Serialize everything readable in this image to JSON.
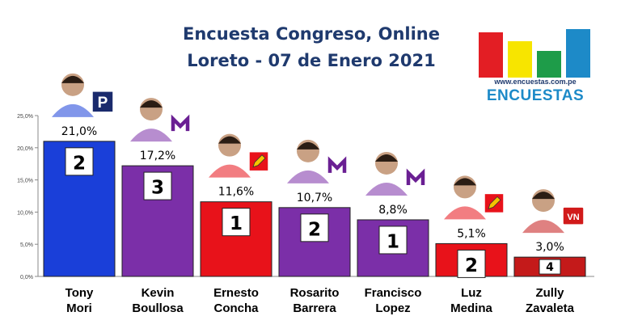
{
  "title_lines": [
    "Encuesta Congreso, Online",
    "Loreto - 07 de Enero 2021"
  ],
  "logo": {
    "url_text": "www.encuestas.com.pe",
    "brand_text": "ENCUESTAS",
    "bar_colors": [
      "#e31e24",
      "#f7e500",
      "#1e9c49",
      "#1d8ac8"
    ],
    "bar_levels": [
      0.82,
      0.66,
      0.48,
      0.88
    ]
  },
  "chart_data": {
    "type": "bar",
    "title": "Encuesta Congreso, Online — Loreto - 07 de Enero 2021",
    "categories": [
      "Tony Mori",
      "Kevin Boullosa",
      "Ernesto Concha",
      "Rosarito Barrera",
      "Francisco Lopez",
      "Luz Medina",
      "Zully Zavaleta"
    ],
    "category_lines": [
      [
        "Tony",
        "Mori"
      ],
      [
        "Kevin",
        "Boullosa"
      ],
      [
        "Ernesto",
        "Concha"
      ],
      [
        "Rosarito",
        "Barrera"
      ],
      [
        "Francisco",
        "Lopez"
      ],
      [
        "Luz",
        "Medina"
      ],
      [
        "Zully",
        "Zavaleta"
      ]
    ],
    "values": [
      21.0,
      17.2,
      11.6,
      10.7,
      8.8,
      5.1,
      3.0
    ],
    "value_labels": [
      "21,0%",
      "17,2%",
      "11,6%",
      "10,7%",
      "8,8%",
      "5,1%",
      "3,0%"
    ],
    "candidate_numbers": [
      "2",
      "3",
      "1",
      "2",
      "1",
      "2",
      "4"
    ],
    "bar_colors": [
      "#1a3fd9",
      "#7b2fa8",
      "#e8121a",
      "#7b2fa8",
      "#7b2fa8",
      "#e8121a",
      "#c41a1a"
    ],
    "y_ticks": [
      0,
      5,
      10,
      15,
      20,
      25
    ],
    "y_tick_labels": [
      "0,0%",
      "5,0%",
      "10,0%",
      "15,0%",
      "20,0%",
      "25,0%"
    ],
    "ylim": [
      0,
      25
    ],
    "grid": false,
    "party_icons": [
      "square-p-icon",
      "letter-m-icon",
      "pencil-icon",
      "letter-m-icon",
      "letter-m-icon",
      "pencil-icon",
      "vn-icon"
    ]
  }
}
